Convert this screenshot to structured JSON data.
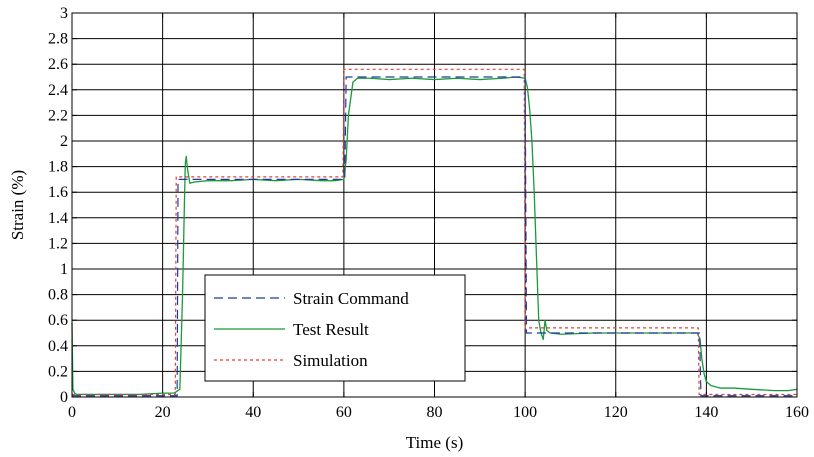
{
  "chart_data": {
    "type": "line",
    "title": "",
    "xlabel": "Time (s)",
    "ylabel": "Strain (%)",
    "xlim": [
      0,
      160
    ],
    "ylim": [
      0,
      3
    ],
    "xticks": [
      0,
      20,
      40,
      60,
      80,
      100,
      120,
      140,
      160
    ],
    "yticks": [
      0,
      0.2,
      0.4,
      0.6,
      0.8,
      1,
      1.2,
      1.4,
      1.6,
      1.8,
      2,
      2.2,
      2.4,
      2.6,
      2.8,
      3
    ],
    "xtick_labels": [
      "0",
      "20",
      "40",
      "60",
      "80",
      "100",
      "120",
      "140",
      "160"
    ],
    "ytick_labels": [
      "0",
      "0.2",
      "0.4",
      "0.6",
      "0.8",
      "1",
      "1.2",
      "1.4",
      "1.6",
      "1.8",
      "2",
      "2.2",
      "2.4",
      "2.6",
      "2.8",
      "3"
    ],
    "grid": true,
    "legend_position": "lower-center-left",
    "series": [
      {
        "name": "Strain Command",
        "color": "#1f3b9c",
        "style": "dashed",
        "x": [
          0,
          23.2,
          23.4,
          60.2,
          60.5,
          100,
          100.3,
          138.5,
          138.8,
          160
        ],
        "y": [
          0.01,
          0.01,
          1.7,
          1.7,
          2.5,
          2.5,
          0.5,
          0.5,
          0.01,
          0.01
        ]
      },
      {
        "name": "Test Result",
        "color": "#1a9a3a",
        "style": "solid",
        "x": [
          0,
          0.2,
          0.6,
          1,
          5,
          10,
          15,
          20,
          22.5,
          23.8,
          24.4,
          24.8,
          25,
          25.2,
          25.5,
          26,
          27,
          30,
          35,
          40,
          45,
          50,
          55,
          58,
          60,
          60.5,
          61,
          62,
          63,
          66,
          70,
          75,
          80,
          85,
          90,
          95,
          98,
          100,
          100.5,
          101,
          101.5,
          102,
          102.5,
          103,
          103.5,
          104,
          104.4,
          104.8,
          105.5,
          108,
          115,
          120,
          125,
          130,
          135,
          138,
          138.6,
          139,
          139.5,
          140,
          141,
          143,
          146,
          150,
          155,
          158,
          160
        ],
        "y": [
          0.58,
          0.06,
          0.03,
          0.02,
          0.02,
          0.02,
          0.02,
          0.03,
          0.03,
          0.06,
          0.8,
          1.5,
          1.82,
          1.88,
          1.78,
          1.67,
          1.68,
          1.69,
          1.69,
          1.7,
          1.69,
          1.7,
          1.69,
          1.69,
          1.7,
          1.85,
          2.2,
          2.46,
          2.49,
          2.49,
          2.48,
          2.49,
          2.48,
          2.49,
          2.48,
          2.49,
          2.5,
          2.49,
          2.42,
          2.25,
          2.0,
          1.6,
          1.1,
          0.6,
          0.5,
          0.45,
          0.6,
          0.52,
          0.5,
          0.49,
          0.5,
          0.5,
          0.5,
          0.5,
          0.5,
          0.5,
          0.45,
          0.3,
          0.18,
          0.12,
          0.09,
          0.07,
          0.07,
          0.06,
          0.05,
          0.05,
          0.06
        ]
      },
      {
        "name": "Simulation",
        "color": "#e0403a",
        "style": "dotted",
        "x": [
          0,
          22.8,
          23.0,
          59.8,
          60.0,
          99.8,
          100.0,
          138.2,
          138.4,
          160
        ],
        "y": [
          0.02,
          0.02,
          1.72,
          1.72,
          2.56,
          2.56,
          0.54,
          0.54,
          0.02,
          0.02
        ]
      }
    ]
  }
}
